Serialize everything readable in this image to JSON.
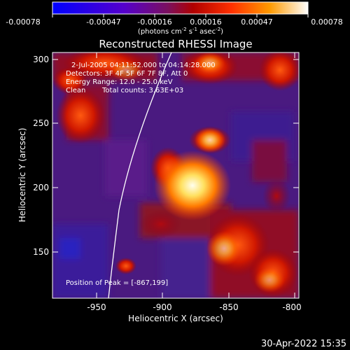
{
  "title": "Reconstructed RHESSI Image",
  "colorbar": {
    "tick_labels": [
      "-0.00078",
      "-0.00047",
      "-0.00016",
      "0.00016",
      "0.00047",
      "0.00078"
    ],
    "unit_label": "(photons cm-2 s-1 asec-2)",
    "unit_parts": {
      "a": "(photons cm",
      "a_sup": "-2",
      "b": " s",
      "b_sup": "-1",
      "c": " asec",
      "c_sup": "-2",
      "d": ")"
    }
  },
  "annotations": {
    "time_range": "2-Jul-2005 04:11:52.000 to 04:14:28.000",
    "detectors": "Detectors: 3F 4F 5F 6F 7F 8F, Att 0",
    "energy": "Energy Range: 12.0 - 25.0 keV",
    "clean": "Clean",
    "counts": "Total counts: 3.63E+03",
    "peak": "Position of Peak = [-867,199]"
  },
  "axes": {
    "xlabel": "Heliocentric X (arcsec)",
    "ylabel": "Heliocentric Y (arcsec)",
    "x_ticks": [
      "-950",
      "-900",
      "-850",
      "-800"
    ],
    "y_ticks": [
      "150",
      "200",
      "250",
      "300"
    ]
  },
  "footer_date": "30-Apr-2022 15:35"
}
